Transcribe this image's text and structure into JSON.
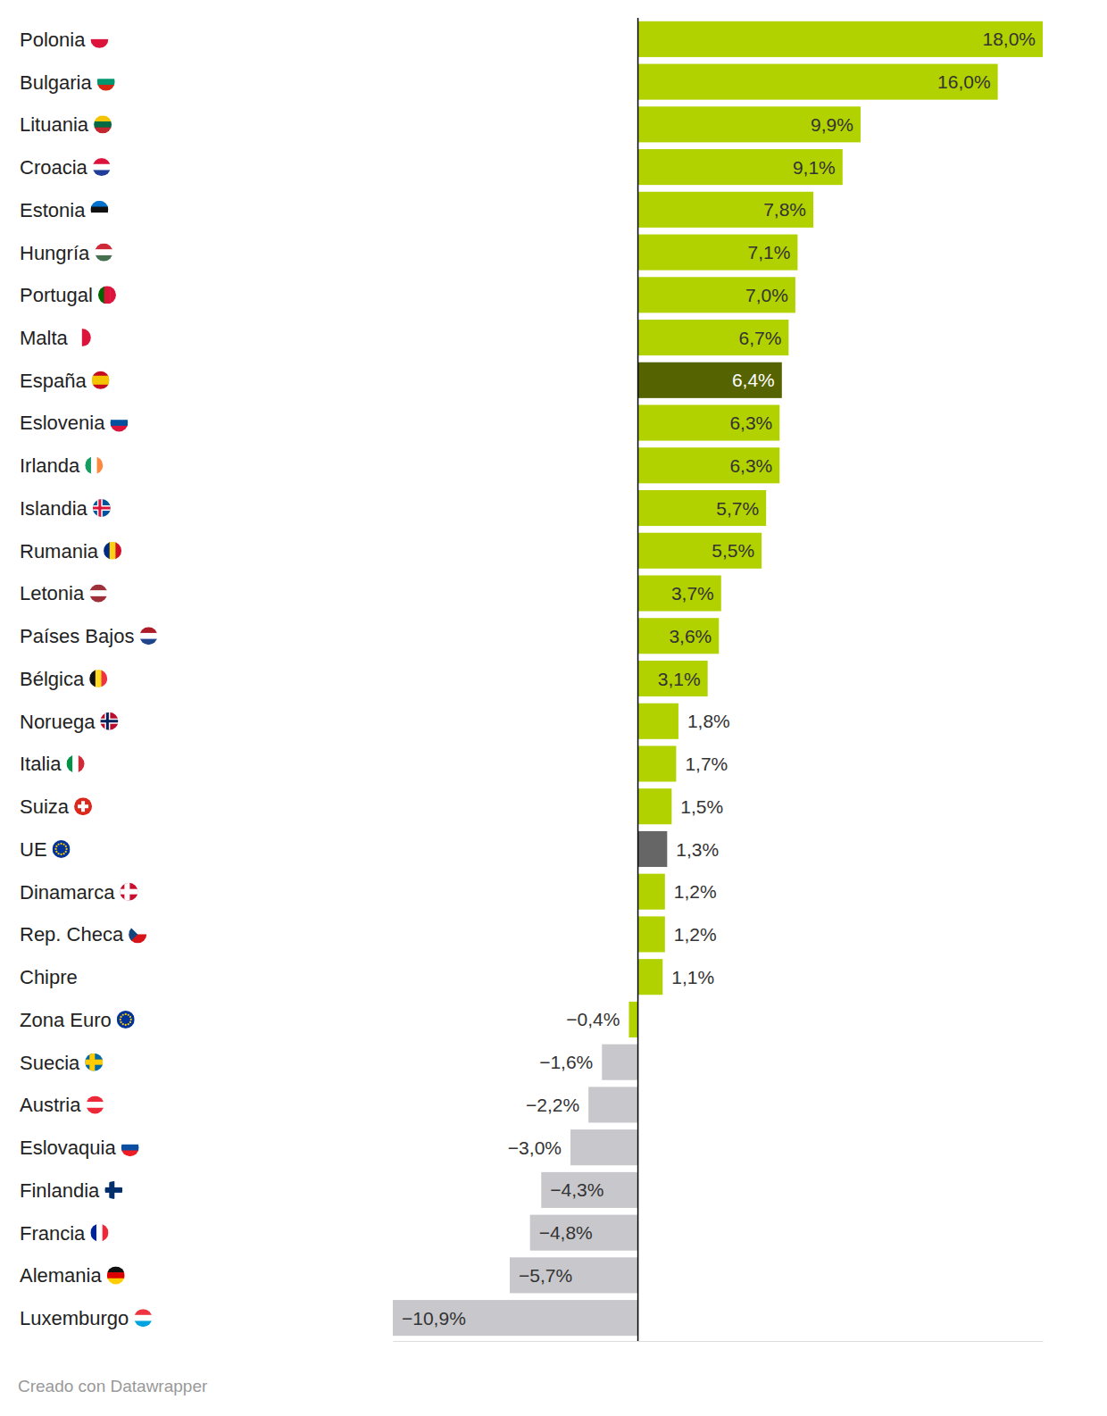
{
  "chart_data": {
    "type": "bar",
    "orientation": "horizontal",
    "categories": [
      "Polonia",
      "Bulgaria",
      "Lituania",
      "Croacia",
      "Estonia",
      "Hungría",
      "Portugal",
      "Malta",
      "España",
      "Eslovenia",
      "Irlanda",
      "Islandia",
      "Rumania",
      "Letonia",
      "Países Bajos",
      "Bélgica",
      "Noruega",
      "Italia",
      "Suiza",
      "UE",
      "Dinamarca",
      "Rep. Checa",
      "Chipre",
      "Zona Euro",
      "Suecia",
      "Austria",
      "Eslovaquia",
      "Finlandia",
      "Francia",
      "Alemania",
      "Luxemburgo"
    ],
    "values": [
      18.0,
      16.0,
      9.9,
      9.1,
      7.8,
      7.1,
      7.0,
      6.7,
      6.4,
      6.3,
      6.3,
      5.7,
      5.5,
      3.7,
      3.6,
      3.1,
      1.8,
      1.7,
      1.5,
      1.3,
      1.2,
      1.2,
      1.1,
      -0.4,
      -1.6,
      -2.2,
      -3.0,
      -4.3,
      -4.8,
      -5.7,
      -10.9
    ],
    "value_labels": [
      "18,0%",
      "16,0%",
      "9,9%",
      "9,1%",
      "7,8%",
      "7,1%",
      "7,0%",
      "6,7%",
      "6,4%",
      "6,3%",
      "6,3%",
      "5,7%",
      "5,5%",
      "3,7%",
      "3,6%",
      "3,1%",
      "1,8%",
      "1,7%",
      "1,5%",
      "1,3%",
      "1,2%",
      "1,2%",
      "1,1%",
      "−0,4%",
      "−1,6%",
      "−2,2%",
      "−3,0%",
      "−4,3%",
      "−4,8%",
      "−5,7%",
      "−10,9%"
    ],
    "colors": [
      "#b2d200",
      "#b2d200",
      "#b2d200",
      "#b2d200",
      "#b2d200",
      "#b2d200",
      "#b2d200",
      "#b2d200",
      "#556300",
      "#b2d200",
      "#b2d200",
      "#b2d200",
      "#b2d200",
      "#b2d200",
      "#b2d200",
      "#b2d200",
      "#b2d200",
      "#b2d200",
      "#b2d200",
      "#666666",
      "#b2d200",
      "#b2d200",
      "#b2d200",
      "#b2d200",
      "#c8c8cc",
      "#c8c8cc",
      "#c8c8cc",
      "#c8c8cc",
      "#c8c8cc",
      "#c8c8cc",
      "#c8c8cc"
    ],
    "xlim": [
      -10.9,
      18
    ],
    "xticks": [
      0
    ],
    "tick_labels": false,
    "data_labels": true,
    "caption": "Creado con Datawrapper"
  }
}
